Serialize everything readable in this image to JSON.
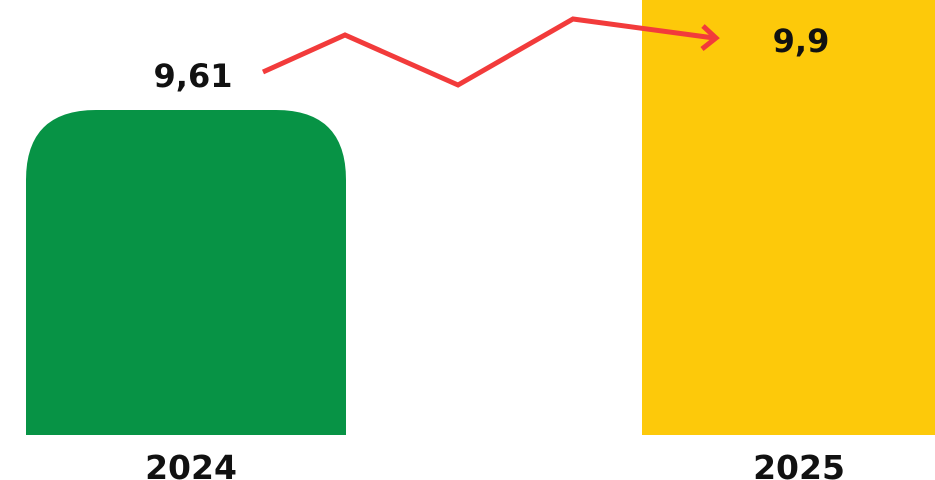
{
  "chart_data": {
    "type": "bar",
    "categories": [
      "2024",
      "2025"
    ],
    "values": [
      9.61,
      9.9
    ],
    "value_labels": [
      "9,61",
      "9,9"
    ],
    "bar_colors": [
      "#079345",
      "#FDC90A"
    ],
    "trend_arrow_color": "#F23B3B",
    "title": "",
    "xlabel": "",
    "ylabel": "",
    "legend": "none",
    "grid": false
  }
}
